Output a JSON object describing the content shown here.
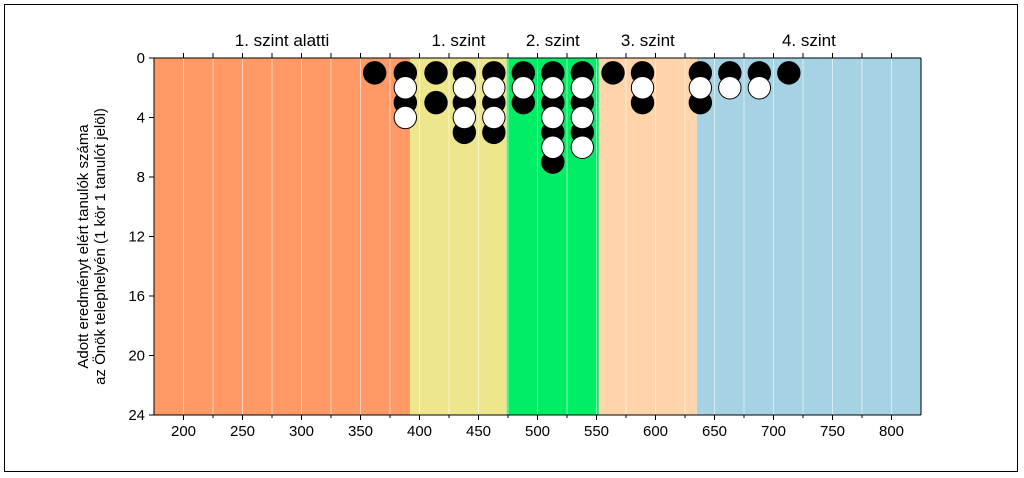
{
  "chart_data": {
    "type": "scatter",
    "title": "",
    "xlabel": "",
    "ylabel_lines": [
      "Adott eredményt elért tanulók száma",
      "az Önök telephelyén (1 kör 1 tanulót jelöl)"
    ],
    "xlim": [
      175,
      825
    ],
    "ylim": [
      24,
      0
    ],
    "x_ticks": [
      200,
      250,
      300,
      350,
      400,
      450,
      500,
      550,
      600,
      650,
      700,
      750,
      800
    ],
    "y_ticks": [
      0,
      4,
      8,
      12,
      16,
      20,
      24
    ],
    "x_gridline_step": 25,
    "bands": [
      {
        "label": "1. szint alatti",
        "from": 175,
        "to": 392,
        "color": "#FF9966"
      },
      {
        "label": "1. szint",
        "from": 392,
        "to": 474,
        "color": "#EEE68C"
      },
      {
        "label": "2. szint",
        "from": 474,
        "to": 552,
        "color": "#00EE66"
      },
      {
        "label": "3. szint",
        "from": 552,
        "to": 635,
        "color": "#FFD4AA"
      },
      {
        "label": "4. szint",
        "from": 635,
        "to": 825,
        "color": "#A6D3E3"
      }
    ],
    "series": [
      {
        "fill": "#000000",
        "points": [
          [
            362,
            1
          ],
          [
            388,
            1
          ],
          [
            388,
            3
          ],
          [
            414,
            1
          ],
          [
            414,
            3
          ],
          [
            438,
            1
          ],
          [
            438,
            3
          ],
          [
            438,
            5
          ],
          [
            463,
            1
          ],
          [
            463,
            3
          ],
          [
            463,
            5
          ],
          [
            488,
            1
          ],
          [
            488,
            3
          ],
          [
            513,
            1
          ],
          [
            513,
            3
          ],
          [
            513,
            5
          ],
          [
            513,
            7
          ],
          [
            538,
            1
          ],
          [
            538,
            3
          ],
          [
            538,
            5
          ],
          [
            564,
            1
          ],
          [
            589,
            1
          ],
          [
            589,
            3
          ],
          [
            638,
            1
          ],
          [
            638,
            3
          ],
          [
            663,
            1
          ],
          [
            688,
            1
          ],
          [
            713,
            1
          ]
        ]
      },
      {
        "fill": "#FFFFFF",
        "points": [
          [
            388,
            2
          ],
          [
            388,
            4
          ],
          [
            438,
            2
          ],
          [
            438,
            4
          ],
          [
            463,
            2
          ],
          [
            463,
            4
          ],
          [
            488,
            2
          ],
          [
            513,
            2
          ],
          [
            513,
            4
          ],
          [
            513,
            6
          ],
          [
            538,
            2
          ],
          [
            538,
            4
          ],
          [
            538,
            6
          ],
          [
            589,
            2
          ],
          [
            638,
            2
          ],
          [
            663,
            2
          ],
          [
            688,
            2
          ]
        ]
      }
    ]
  }
}
